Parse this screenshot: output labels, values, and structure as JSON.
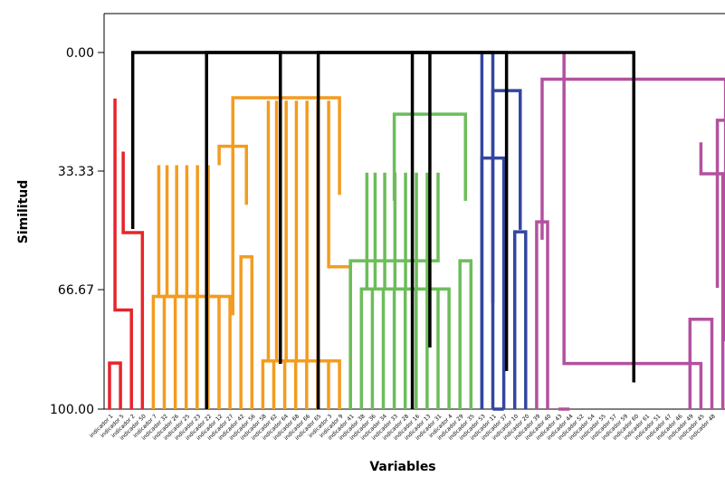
{
  "chart_data": {
    "type": "dendrogram",
    "ylabel": "Similitud",
    "xlabel": "Variables",
    "yticks": [
      "0.00",
      "33.33",
      "66.67",
      "100.00"
    ],
    "ylim": [
      0,
      100
    ],
    "y_axis_inverted": true,
    "grid": false,
    "legend": "none",
    "leaf_labels": [
      "indicador 1",
      "indicador 5",
      "indicador 2",
      "indicador 50",
      "indicador 7",
      "indicador 32",
      "indicador 26",
      "indicador 25",
      "indicador 23",
      "indicador 22",
      "indicador 12",
      "indicador 27",
      "indicador 42",
      "indicador 56",
      "indicador 58",
      "indicador 62",
      "indicador 64",
      "indicador 68",
      "indicador 66",
      "indicador 65",
      "indicador 3",
      "indicador 9",
      "indicador 41",
      "indicador 38",
      "indicador 36",
      "indicador 34",
      "indicador 33",
      "indicador 28",
      "indicador 16",
      "indicador 13",
      "indicador 31",
      "indicador 4",
      "indicador 29",
      "indicador 35",
      "indicador 53",
      "indicador 11",
      "indicador 37",
      "indicador 10",
      "indicador 20",
      "indicador 39",
      "indicador 40",
      "indicador 43",
      "indicador 44",
      "indicador 52",
      "indicador 54",
      "indicador 55",
      "indicador 57",
      "indicador 59",
      "indicador 60",
      "indicador 61",
      "indicador 51",
      "indicador 47",
      "indicador 46",
      "indicador 49",
      "indicador 45",
      "indicador 48"
    ],
    "clusters": [
      {
        "color": "#e8242b",
        "leaves": 4,
        "join_similarity": 50.5
      },
      {
        "color": "#f39c1f",
        "leaves": 16,
        "join_similarity": 12.7
      },
      {
        "color": "#6cbd5a",
        "leaves": 11,
        "join_similarity": 17.3
      },
      {
        "color": "#3346a0",
        "leaves": 6,
        "join_similarity": 10.7
      },
      {
        "color": "#b3519f",
        "leaves": 19,
        "join_similarity": 7.5
      }
    ],
    "merges": [
      {
        "color": "red",
        "left": [
          0,
          0
        ],
        "right": [
          1,
          0
        ],
        "y": 87.1
      },
      {
        "color": "red",
        "left": [
          0.5,
          87.1
        ],
        "right": [
          2,
          0
        ],
        "y": 72.2
      },
      {
        "color": "red",
        "left": [
          1.25,
          72.2
        ],
        "right": [
          3,
          0
        ],
        "y": 50.5
      },
      {
        "color": "orange",
        "left": [
          4,
          0
        ],
        "right": [
          5,
          0
        ],
        "y": 68.4
      },
      {
        "color": "orange",
        "left": [
          4.5,
          68.4
        ],
        "right": [
          6,
          0
        ],
        "y": 68.4
      },
      {
        "color": "orange",
        "left": [
          5.25,
          68.4
        ],
        "right": [
          7,
          0
        ],
        "y": 68.4
      },
      {
        "color": "orange",
        "left": [
          6.13,
          68.4
        ],
        "right": [
          8,
          0
        ],
        "y": 68.4
      },
      {
        "color": "orange",
        "left": [
          7.06,
          68.4
        ],
        "right": [
          9,
          0
        ],
        "y": 68.4
      },
      {
        "color": "orange",
        "left": [
          8.03,
          68.4
        ],
        "right": [
          10,
          0
        ],
        "y": 68.4
      },
      {
        "color": "orange",
        "left": [
          9.02,
          68.4
        ],
        "right": [
          11,
          0
        ],
        "y": 68.4
      },
      {
        "color": "orange",
        "left": [
          12,
          0
        ],
        "right": [
          13,
          0
        ],
        "y": 57.3
      },
      {
        "color": "orange",
        "left": [
          10.01,
          68.4
        ],
        "right": [
          12.5,
          57.3
        ],
        "y": 26.3
      },
      {
        "color": "orange",
        "left": [
          14,
          0
        ],
        "right": [
          15,
          0
        ],
        "y": 86.5
      },
      {
        "color": "orange",
        "left": [
          14.5,
          86.5
        ],
        "right": [
          16,
          0
        ],
        "y": 86.5
      },
      {
        "color": "orange",
        "left": [
          15.25,
          86.5
        ],
        "right": [
          17,
          0
        ],
        "y": 86.5
      },
      {
        "color": "orange",
        "left": [
          16.13,
          86.5
        ],
        "right": [
          18,
          0
        ],
        "y": 86.5
      },
      {
        "color": "orange",
        "left": [
          17.06,
          86.5
        ],
        "right": [
          19,
          0
        ],
        "y": 86.5
      },
      {
        "color": "orange",
        "left": [
          18.03,
          86.5
        ],
        "right": [
          20,
          0
        ],
        "y": 86.5
      },
      {
        "color": "orange",
        "left": [
          19.02,
          86.5
        ],
        "right": [
          21,
          0
        ],
        "y": 86.5
      },
      {
        "color": "orange",
        "left": [
          20.01,
          86.5
        ],
        "right": [
          22,
          0
        ],
        "y": 60.1
      },
      {
        "color": "orange",
        "left": [
          11.26,
          26.3
        ],
        "right": [
          21,
          60.1
        ],
        "y": 12.7
      },
      {
        "color": "green",
        "left": [
          23,
          0
        ],
        "right": [
          24,
          0
        ],
        "y": 66.3
      },
      {
        "color": "green",
        "left": [
          23.5,
          66.3
        ],
        "right": [
          25,
          0
        ],
        "y": 66.3
      },
      {
        "color": "green",
        "left": [
          24.25,
          66.3
        ],
        "right": [
          26,
          0
        ],
        "y": 66.3
      },
      {
        "color": "green",
        "left": [
          25.13,
          66.3
        ],
        "right": [
          27,
          0
        ],
        "y": 66.3
      },
      {
        "color": "green",
        "left": [
          26.06,
          66.3
        ],
        "right": [
          28,
          0
        ],
        "y": 66.3
      },
      {
        "color": "green",
        "left": [
          27.03,
          66.3
        ],
        "right": [
          29,
          0
        ],
        "y": 66.3
      },
      {
        "color": "green",
        "left": [
          28.02,
          66.3
        ],
        "right": [
          30,
          0
        ],
        "y": 66.3
      },
      {
        "color": "green",
        "left": [
          29.01,
          66.3
        ],
        "right": [
          31,
          0
        ],
        "y": 66.3
      },
      {
        "color": "green",
        "left": [
          22,
          0
        ],
        "right": [
          30,
          66.3
        ],
        "y": 58.4
      },
      {
        "color": "green",
        "left": [
          32,
          0
        ],
        "right": [
          33,
          0
        ],
        "y": 58.4
      },
      {
        "color": "green",
        "left": [
          26,
          58.4
        ],
        "right": [
          32.5,
          58.4
        ],
        "y": 17.3
      },
      {
        "color": "blue",
        "left": [
          34,
          0
        ],
        "right": [
          35,
          0
        ],
        "y": 0
      },
      {
        "color": "blue",
        "left": [
          35,
          0
        ],
        "right": [
          36,
          0
        ],
        "y": 100
      },
      {
        "color": "blue",
        "left": [
          34,
          0
        ],
        "right": [
          36,
          0
        ],
        "y": 29.6
      },
      {
        "color": "blue",
        "left": [
          37,
          0
        ],
        "right": [
          38,
          0
        ],
        "y": 50.3
      },
      {
        "color": "blue",
        "left": [
          35,
          29.6
        ],
        "right": [
          37.5,
          50.3
        ],
        "y": 10.7
      },
      {
        "color": "purple",
        "left": [
          39,
          0
        ],
        "right": [
          40,
          0
        ],
        "y": 47.5
      },
      {
        "color": "purple",
        "left": [
          41,
          0
        ],
        "right": [
          42,
          0
        ],
        "y": 100
      },
      {
        "color": "purple",
        "left": [
          41.5,
          100
        ],
        "right": [
          54,
          0
        ],
        "y": 87.2
      },
      {
        "color": "purple",
        "left": [
          53,
          0
        ],
        "right": [
          55,
          0
        ],
        "y": 74.8
      },
      {
        "color": "purple",
        "left": [
          54,
          74.8
        ],
        "right": [
          57,
          0
        ],
        "y": 34.0
      },
      {
        "color": "purple",
        "left": [
          56,
          0
        ],
        "right": [
          58,
          0
        ],
        "y": 34.0
      },
      {
        "color": "purple",
        "left": [
          55.5,
          34.0
        ],
        "right": [
          57,
          34.0
        ],
        "y": 19.0
      },
      {
        "color": "purple",
        "left": [
          39.5,
          47.5
        ],
        "right": [
          56.25,
          19.0
        ],
        "y": 7.5
      },
      {
        "color": "black",
        "left": [
          2.12,
          50.5
        ],
        "right": [
          15.6,
          12.7
        ],
        "y": 0
      },
      {
        "color": "black",
        "left": [
          8.86,
          0
        ],
        "right": [
          29.25,
          17.3
        ],
        "y": 0
      },
      {
        "color": "black",
        "left": [
          19.06,
          0
        ],
        "right": [
          36.25,
          10.7
        ],
        "y": 0
      },
      {
        "color": "black",
        "left": [
          27.65,
          0
        ],
        "right": [
          47.87,
          7.5
        ],
        "y": 0
      }
    ]
  }
}
